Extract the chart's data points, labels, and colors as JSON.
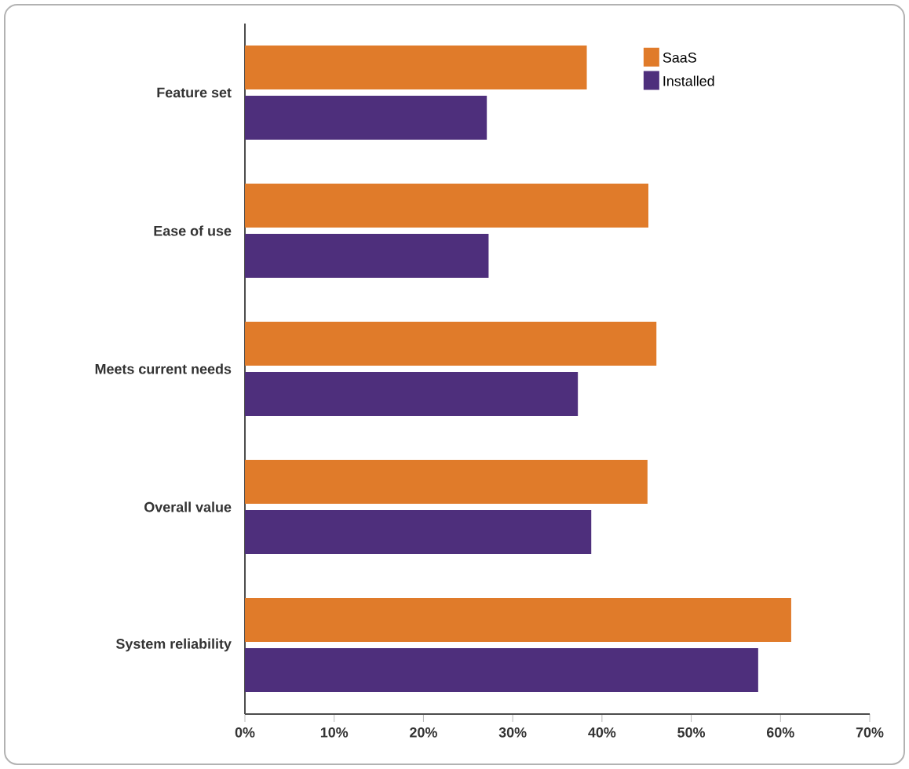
{
  "chart_data": {
    "type": "bar",
    "orientation": "horizontal",
    "categories": [
      "Feature set",
      "Ease of use",
      "Meets current needs",
      "Overall value",
      "System reliability"
    ],
    "series": [
      {
        "name": "SaaS",
        "color": "#e07b2a",
        "values": [
          38.3,
          45.2,
          46.1,
          45.1,
          61.2
        ]
      },
      {
        "name": "Installed",
        "color": "#4e2f7c",
        "values": [
          27.1,
          27.3,
          37.3,
          38.8,
          57.5
        ]
      }
    ],
    "xlim": [
      0,
      70
    ],
    "xticks": [
      {
        "value": 0,
        "label": "0%"
      },
      {
        "value": 10,
        "label": "10%"
      },
      {
        "value": 20,
        "label": "20%"
      },
      {
        "value": 30,
        "label": "30%"
      },
      {
        "value": 40,
        "label": "40%"
      },
      {
        "value": 50,
        "label": "50%"
      },
      {
        "value": 60,
        "label": "60%"
      },
      {
        "value": 70,
        "label": "70%"
      }
    ],
    "grid": false,
    "legend": "top right"
  }
}
